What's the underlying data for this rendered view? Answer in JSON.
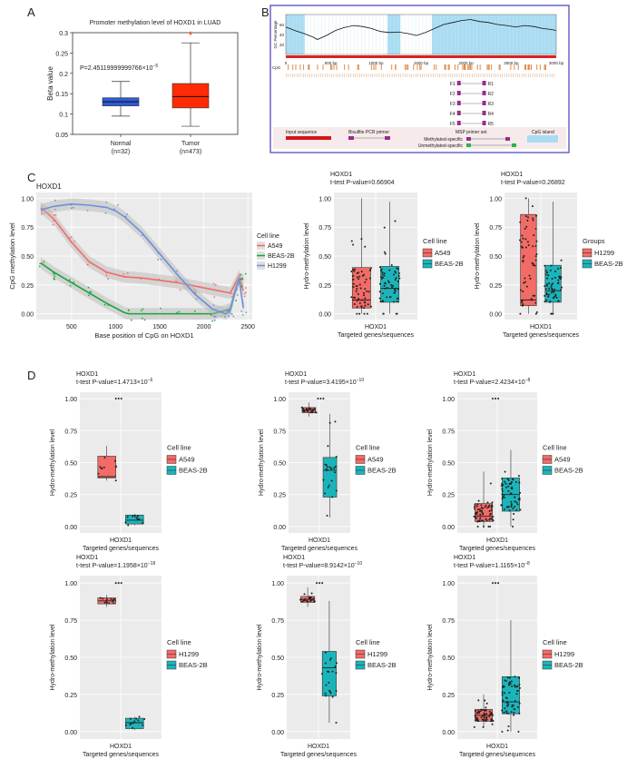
{
  "panels": {
    "A": "A",
    "B": "B",
    "C": "C",
    "D": "D"
  },
  "chart_data": [
    {
      "id": "A",
      "type": "box",
      "title": "Promoter methylation level of HOXD1 in LUAD",
      "ylabel": "Beta value",
      "ylim": [
        0.05,
        0.3
      ],
      "yticks": [
        "0.05",
        "0.1",
        "0.15",
        "0.2",
        "0.25",
        "0.3"
      ],
      "annotation": "P=2.45119999999766×10",
      "annotation_exp": "−5",
      "star": "*",
      "categories": [
        "Normal",
        "Tumor"
      ],
      "category_sub": [
        "(n=32)",
        "(n=473)"
      ],
      "boxes": [
        {
          "min": 0.095,
          "q1": 0.12,
          "median": 0.13,
          "q3": 0.14,
          "max": 0.18,
          "color": "#2f5bd3"
        },
        {
          "min": 0.07,
          "q1": 0.115,
          "median": 0.143,
          "q3": 0.175,
          "max": 0.275,
          "color": "#ff2b05"
        }
      ]
    },
    {
      "id": "B",
      "type": "area",
      "ylabel": "GC Percentage",
      "yticks": [
        "20",
        "40",
        "60"
      ],
      "xticks": [
        "0",
        "500 bp",
        "1000 bp",
        "1500 bp",
        "2000 bp",
        "2500 bp",
        "3000 bp"
      ],
      "xlim": [
        0,
        3000
      ],
      "row_label": "CpG",
      "islands": [
        [
          0,
          210
        ],
        [
          1130,
          1270
        ],
        [
          1620,
          3000
        ]
      ],
      "gc": [
        [
          0,
          55
        ],
        [
          100,
          48
        ],
        [
          200,
          42
        ],
        [
          300,
          35
        ],
        [
          350,
          30
        ],
        [
          450,
          38
        ],
        [
          550,
          48
        ],
        [
          650,
          54
        ],
        [
          750,
          58
        ],
        [
          850,
          56
        ],
        [
          950,
          52
        ],
        [
          1050,
          46
        ],
        [
          1150,
          44
        ],
        [
          1250,
          45
        ],
        [
          1350,
          42
        ],
        [
          1450,
          38
        ],
        [
          1550,
          44
        ],
        [
          1650,
          52
        ],
        [
          1750,
          60
        ],
        [
          1850,
          64
        ],
        [
          1950,
          68
        ],
        [
          2050,
          70
        ],
        [
          2150,
          66
        ],
        [
          2250,
          64
        ],
        [
          2350,
          60
        ],
        [
          2450,
          58
        ],
        [
          2550,
          55
        ],
        [
          2650,
          58
        ],
        [
          2750,
          56
        ],
        [
          2850,
          52
        ],
        [
          2950,
          50
        ],
        [
          3000,
          48
        ]
      ],
      "primers": [
        {
          "f": "F1",
          "r": "R1"
        },
        {
          "f": "F2",
          "r": "R2"
        },
        {
          "f": "F3",
          "r": "R3"
        },
        {
          "f": "F4",
          "r": "R4"
        },
        {
          "f": "F5",
          "r": "R5"
        }
      ],
      "legend": [
        "Input sequence",
        "Bisulfite PCR primer",
        "MSP primer set",
        "Methylated-specific",
        "Unmethylated-specific",
        "CpG island"
      ]
    },
    {
      "id": "C1",
      "type": "line",
      "title": "HOXD1",
      "xlabel": "Base position of CpG on HOXD1",
      "ylabel": "CpG methylation level",
      "xlim": [
        100,
        2550
      ],
      "ylim": [
        -0.05,
        1.05
      ],
      "xticks": [
        "500",
        "1000",
        "1500",
        "2000",
        "2500"
      ],
      "yticks": [
        "0.00",
        "0.25",
        "0.50",
        "0.75",
        "1.00"
      ],
      "legend_title": "Cell line",
      "series": [
        {
          "name": "A549",
          "color": "#f36b66",
          "x": [
            150,
            300,
            500,
            700,
            900,
            1100,
            1300,
            1500,
            1700,
            1900,
            2100,
            2300,
            2350,
            2400,
            2450
          ],
          "y": [
            0.92,
            0.82,
            0.62,
            0.45,
            0.36,
            0.32,
            0.31,
            0.29,
            0.27,
            0.24,
            0.21,
            0.18,
            0.25,
            0.33,
            0.2
          ]
        },
        {
          "name": "BEAS-2B",
          "color": "#18a63a",
          "x": [
            150,
            300,
            500,
            700,
            900,
            1100,
            1150,
            1300,
            1500,
            1700,
            1900,
            2100,
            2300,
            2350,
            2400,
            2450
          ],
          "y": [
            0.44,
            0.36,
            0.27,
            0.18,
            0.09,
            0.01,
            0.0,
            0.0,
            0.0,
            0.0,
            0.0,
            0.0,
            0.04,
            0.18,
            0.3,
            0.3
          ]
        },
        {
          "name": "H1299",
          "color": "#6c8fda",
          "x": [
            150,
            300,
            500,
            700,
            900,
            1000,
            1100,
            1300,
            1500,
            1700,
            1900,
            2100,
            2250,
            2300,
            2350,
            2400,
            2450
          ],
          "y": [
            0.9,
            0.93,
            0.95,
            0.94,
            0.92,
            0.89,
            0.84,
            0.7,
            0.52,
            0.34,
            0.17,
            0.04,
            0.0,
            0.03,
            0.18,
            0.3,
            0.05
          ]
        }
      ]
    },
    {
      "id": "C2",
      "type": "box",
      "line1": "HOXD1",
      "line2": "t-test P-value=0.66904",
      "exp": "",
      "xlabel": "HOXD1",
      "xlabel2": "Targeted genes/sequences",
      "ylabel": "Hydro-methylation level",
      "legend_title": "Cell line",
      "legend": [
        "A549",
        "BEAS-2B"
      ],
      "boxes": [
        {
          "min": 0.0,
          "q1": 0.05,
          "median": 0.12,
          "q3": 0.4,
          "max": 1.0,
          "color": "#f36b66"
        },
        {
          "min": 0.0,
          "q1": 0.1,
          "median": 0.22,
          "q3": 0.41,
          "max": 0.97,
          "color": "#1ab5ba"
        }
      ]
    },
    {
      "id": "C3",
      "type": "box",
      "line1": "HOXD1",
      "line2": "t-test P-value=0.26892",
      "exp": "",
      "xlabel": "HOXD1",
      "xlabel2": "Targeted genes/sequences",
      "ylabel": "Hydro-methylation level",
      "legend_title": "Groups",
      "legend": [
        "H1299",
        "BEAS-2B"
      ],
      "boxes": [
        {
          "min": 0.0,
          "q1": 0.07,
          "median": 0.12,
          "q3": 0.86,
          "max": 1.0,
          "color": "#f36b66"
        },
        {
          "min": 0.0,
          "q1": 0.1,
          "median": 0.2,
          "q3": 0.42,
          "max": 0.97,
          "color": "#1ab5ba"
        }
      ]
    },
    {
      "id": "D1",
      "type": "box",
      "line1": "HOXD1",
      "line2": "t-test P-value=1.4713×10",
      "exp": "−6",
      "xlabel": "HOXD1",
      "xlabel2": "Targeted genes/sequences",
      "ylabel": "Hydro-methylation level",
      "legend_title": "Cell line",
      "legend": [
        "A549",
        "BEAS-2B"
      ],
      "boxes": [
        {
          "min": 0.36,
          "q1": 0.38,
          "median": 0.39,
          "q3": 0.55,
          "max": 0.63,
          "color": "#f36b66"
        },
        {
          "min": 0.01,
          "q1": 0.02,
          "median": 0.05,
          "q3": 0.09,
          "max": 0.1,
          "color": "#1ab5ba"
        }
      ]
    },
    {
      "id": "D2",
      "type": "box",
      "line1": "HOXD1",
      "line2": "t-test P-value=3.4195×10",
      "exp": "−10",
      "xlabel": "HOXD1",
      "xlabel2": "Targeted genes/sequences",
      "ylabel": "Hydro-methylation level",
      "legend_title": "Cell line",
      "legend": [
        "A549",
        "BEAS-2B"
      ],
      "boxes": [
        {
          "min": 0.86,
          "q1": 0.89,
          "median": 0.91,
          "q3": 0.93,
          "max": 0.97,
          "color": "#f36b66"
        },
        {
          "min": 0.07,
          "q1": 0.23,
          "median": 0.44,
          "q3": 0.54,
          "max": 0.88,
          "color": "#1ab5ba"
        }
      ]
    },
    {
      "id": "D3",
      "type": "box",
      "line1": "HOXD1",
      "line2": "t-test P-value=2.4234×10",
      "exp": "−8",
      "xlabel": "HOXD1",
      "xlabel2": "Targeted genes/sequences",
      "ylabel": "Hydro-methylation level",
      "legend_title": "Cell line",
      "legend": [
        "A549",
        "BEAS-2B"
      ],
      "boxes": [
        {
          "min": 0.0,
          "q1": 0.04,
          "median": 0.08,
          "q3": 0.18,
          "max": 0.43,
          "color": "#f36b66"
        },
        {
          "min": 0.0,
          "q1": 0.12,
          "median": 0.25,
          "q3": 0.38,
          "max": 0.6,
          "color": "#1ab5ba"
        }
      ]
    },
    {
      "id": "D4",
      "type": "box",
      "line1": "HOXD1",
      "line2": "t-test P-value=1.1958×10",
      "exp": "−18",
      "xlabel": "HOXD1",
      "xlabel2": "Targeted genes/sequences",
      "ylabel": "Hydro-methylation level",
      "legend_title": "Cell line",
      "legend": [
        "H1299",
        "BEAS-2B"
      ],
      "boxes": [
        {
          "min": 0.84,
          "q1": 0.86,
          "median": 0.88,
          "q3": 0.9,
          "max": 0.92,
          "color": "#f36b66"
        },
        {
          "min": 0.01,
          "q1": 0.02,
          "median": 0.06,
          "q3": 0.09,
          "max": 0.1,
          "color": "#1ab5ba"
        }
      ]
    },
    {
      "id": "D5",
      "type": "box",
      "line1": "HOXD1",
      "line2": "t-test P-value=8.9142×10",
      "exp": "−10",
      "xlabel": "HOXD1",
      "xlabel2": "Targeted genes/sequences",
      "ylabel": "Hydro-methylation level",
      "legend_title": "Cell line",
      "legend": [
        "H1299",
        "BEAS-2B"
      ],
      "boxes": [
        {
          "min": 0.84,
          "q1": 0.87,
          "median": 0.89,
          "q3": 0.91,
          "max": 0.97,
          "color": "#f36b66"
        },
        {
          "min": 0.06,
          "q1": 0.24,
          "median": 0.43,
          "q3": 0.54,
          "max": 0.88,
          "color": "#1ab5ba"
        }
      ]
    },
    {
      "id": "D6",
      "type": "box",
      "line1": "HOXD1",
      "line2": "t-test P-value=1.1165×10",
      "exp": "−8",
      "xlabel": "HOXD1",
      "xlabel2": "Targeted genes/sequences",
      "ylabel": "Hydro-methylation level",
      "legend_title": "Cell line",
      "legend": [
        "H1299",
        "BEAS-2B"
      ],
      "boxes": [
        {
          "min": 0.03,
          "q1": 0.07,
          "median": 0.11,
          "q3": 0.15,
          "max": 0.25,
          "color": "#f36b66"
        },
        {
          "min": 0.0,
          "q1": 0.12,
          "median": 0.2,
          "q3": 0.37,
          "max": 0.75,
          "color": "#1ab5ba"
        }
      ]
    }
  ]
}
